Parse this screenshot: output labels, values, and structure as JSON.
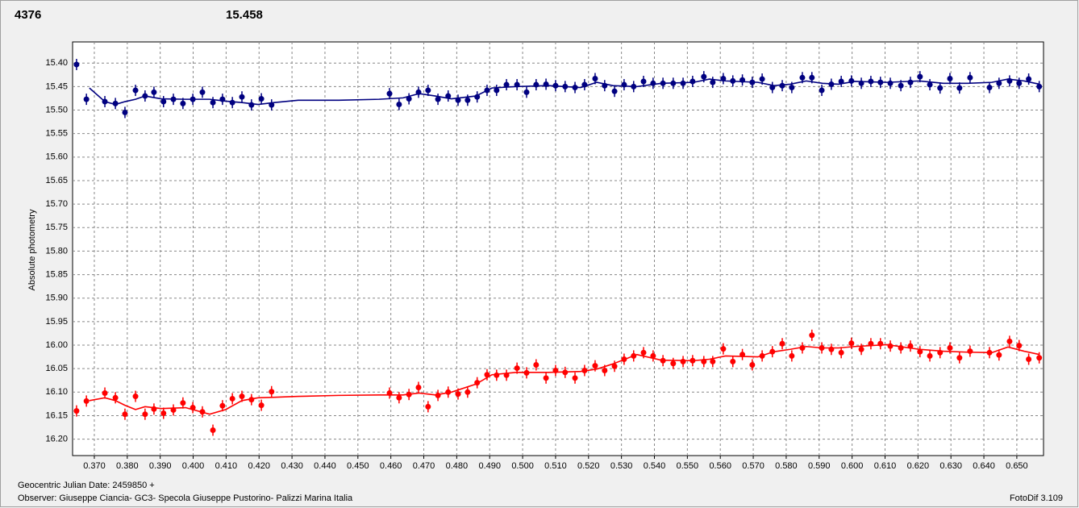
{
  "chart_data": {
    "type": "scatter",
    "annotations": [
      {
        "text": "4376",
        "color": "#ff0000"
      },
      {
        "text": "15.458",
        "color": "#000080"
      }
    ],
    "y_label": "Absolute photometry",
    "x_label": "Geocentric Julian Date: 2459850 +",
    "observer": "Observer: Giuseppe Ciancia- GC3- Specola Giuseppe Pustorino- Palizzi Marina Italia",
    "footer": "FotoDif 3.109",
    "grid": true,
    "xlim": [
      0.3634,
      0.6581
    ],
    "ylim": [
      16.235,
      15.355
    ],
    "xticks": [
      {
        "value": 0.37,
        "label": "0.370"
      },
      {
        "value": 0.38,
        "label": "0.380"
      },
      {
        "value": 0.39,
        "label": "0.390"
      },
      {
        "value": 0.4,
        "label": "0.400"
      },
      {
        "value": 0.41,
        "label": "0.410"
      },
      {
        "value": 0.42,
        "label": "0.420"
      },
      {
        "value": 0.43,
        "label": "0.430"
      },
      {
        "value": 0.44,
        "label": "0.440"
      },
      {
        "value": 0.45,
        "label": "0.450"
      },
      {
        "value": 0.46,
        "label": "0.460"
      },
      {
        "value": 0.47,
        "label": "0.470"
      },
      {
        "value": 0.48,
        "label": "0.480"
      },
      {
        "value": 0.49,
        "label": "0.490"
      },
      {
        "value": 0.5,
        "label": "0.500"
      },
      {
        "value": 0.51,
        "label": "0.510"
      },
      {
        "value": 0.52,
        "label": "0.520"
      },
      {
        "value": 0.53,
        "label": "0.530"
      },
      {
        "value": 0.54,
        "label": "0.540"
      },
      {
        "value": 0.55,
        "label": "0.550"
      },
      {
        "value": 0.56,
        "label": "0.560"
      },
      {
        "value": 0.57,
        "label": "0.570"
      },
      {
        "value": 0.58,
        "label": "0.580"
      },
      {
        "value": 0.59,
        "label": "0.590"
      },
      {
        "value": 0.6,
        "label": "0.600"
      },
      {
        "value": 0.61,
        "label": "0.610"
      },
      {
        "value": 0.62,
        "label": "0.620"
      },
      {
        "value": 0.63,
        "label": "0.630"
      },
      {
        "value": 0.64,
        "label": "0.640"
      },
      {
        "value": 0.65,
        "label": "0.650"
      }
    ],
    "yticks": [
      {
        "value": 15.4,
        "label": "15.40"
      },
      {
        "value": 15.45,
        "label": "15.45"
      },
      {
        "value": 15.5,
        "label": "15.50"
      },
      {
        "value": 15.55,
        "label": "15.55"
      },
      {
        "value": 15.6,
        "label": "15.60"
      },
      {
        "value": 15.65,
        "label": "15.65"
      },
      {
        "value": 15.7,
        "label": "15.70"
      },
      {
        "value": 15.75,
        "label": "15.75"
      },
      {
        "value": 15.8,
        "label": "15.80"
      },
      {
        "value": 15.85,
        "label": "15.85"
      },
      {
        "value": 15.9,
        "label": "15.90"
      },
      {
        "value": 15.95,
        "label": "15.95"
      },
      {
        "value": 16.0,
        "label": "16.00"
      },
      {
        "value": 16.05,
        "label": "16.05"
      },
      {
        "value": 16.1,
        "label": "16.10"
      },
      {
        "value": 16.15,
        "label": "16.15"
      },
      {
        "value": 16.2,
        "label": "16.20"
      }
    ],
    "x": [
      0.3646,
      0.3676,
      0.3732,
      0.3764,
      0.3793,
      0.3825,
      0.3854,
      0.3881,
      0.391,
      0.394,
      0.3969,
      0.3999,
      0.4028,
      0.406,
      0.4089,
      0.4119,
      0.4148,
      0.4177,
      0.4207,
      0.4238,
      0.4596,
      0.4625,
      0.4655,
      0.4684,
      0.4713,
      0.4743,
      0.4774,
      0.4804,
      0.4833,
      0.4862,
      0.4892,
      0.4921,
      0.4951,
      0.4983,
      0.5012,
      0.5041,
      0.5071,
      0.51,
      0.5129,
      0.5159,
      0.5188,
      0.522,
      0.5249,
      0.5279,
      0.5308,
      0.5337,
      0.5367,
      0.5396,
      0.5426,
      0.5457,
      0.5487,
      0.5516,
      0.555,
      0.5577,
      0.5609,
      0.5638,
      0.5667,
      0.5697,
      0.5727,
      0.5758,
      0.5788,
      0.5817,
      0.5849,
      0.5878,
      0.5908,
      0.5937,
      0.5967,
      0.5998,
      0.6028,
      0.6057,
      0.6086,
      0.6116,
      0.6148,
      0.6177,
      0.6206,
      0.6236,
      0.6267,
      0.6297,
      0.6326,
      0.6358,
      0.6417,
      0.6446,
      0.6478,
      0.6507,
      0.6536,
      0.6568
    ],
    "fit_x": [
      0.3685,
      0.3732,
      0.3764,
      0.3793,
      0.3825,
      0.3854,
      0.3903,
      0.3977,
      0.405,
      0.4099,
      0.4148,
      0.4197,
      0.4246,
      0.4319,
      0.4442,
      0.4564,
      0.4637,
      0.4686,
      0.4735,
      0.4784,
      0.4858,
      0.4907,
      0.498,
      0.5078,
      0.5176,
      0.5225,
      0.5274,
      0.5347,
      0.5421,
      0.5519,
      0.5567,
      0.5616,
      0.5714,
      0.5763,
      0.5812,
      0.5861,
      0.591,
      0.5959,
      0.6008,
      0.6106,
      0.6204,
      0.6277,
      0.6351,
      0.6424,
      0.6473,
      0.6522,
      0.6569
    ],
    "series": [
      {
        "color": "#000080",
        "error": 0.012,
        "values": [
          15.403,
          15.477,
          15.482,
          15.486,
          15.505,
          15.458,
          15.47,
          15.462,
          15.482,
          15.477,
          15.486,
          15.477,
          15.462,
          15.484,
          15.477,
          15.484,
          15.472,
          15.489,
          15.476,
          15.489,
          15.465,
          15.488,
          15.476,
          15.462,
          15.458,
          15.477,
          15.47,
          15.479,
          15.479,
          15.472,
          15.458,
          15.458,
          15.446,
          15.446,
          15.462,
          15.446,
          15.445,
          15.448,
          15.45,
          15.452,
          15.446,
          15.433,
          15.448,
          15.46,
          15.446,
          15.45,
          15.439,
          15.443,
          15.443,
          15.443,
          15.443,
          15.439,
          15.429,
          15.441,
          15.433,
          15.438,
          15.436,
          15.441,
          15.434,
          15.452,
          15.448,
          15.452,
          15.431,
          15.431,
          15.458,
          15.445,
          15.439,
          15.438,
          15.443,
          15.439,
          15.441,
          15.443,
          15.448,
          15.441,
          15.429,
          15.446,
          15.453,
          15.433,
          15.453,
          15.431,
          15.452,
          15.443,
          15.438,
          15.443,
          15.434,
          15.45
        ],
        "fit": [
          15.453,
          15.482,
          15.488,
          15.482,
          15.477,
          15.47,
          15.476,
          15.477,
          15.477,
          15.481,
          15.484,
          15.488,
          15.484,
          15.479,
          15.479,
          15.477,
          15.474,
          15.465,
          15.47,
          15.476,
          15.47,
          15.453,
          15.45,
          15.448,
          15.452,
          15.441,
          15.448,
          15.45,
          15.443,
          15.441,
          15.434,
          15.438,
          15.441,
          15.448,
          15.445,
          15.438,
          15.443,
          15.445,
          15.439,
          15.441,
          15.438,
          15.443,
          15.443,
          15.441,
          15.434,
          15.438,
          15.445
        ]
      },
      {
        "color": "#ff0000",
        "error": 0.012,
        "values": [
          16.14,
          16.119,
          16.102,
          16.112,
          16.147,
          16.109,
          16.147,
          16.136,
          16.145,
          16.138,
          16.123,
          16.133,
          16.142,
          16.181,
          16.129,
          16.114,
          16.109,
          16.116,
          16.128,
          16.099,
          16.102,
          16.112,
          16.105,
          16.09,
          16.131,
          16.107,
          16.1,
          16.104,
          16.1,
          16.08,
          16.063,
          16.064,
          16.064,
          16.049,
          16.059,
          16.042,
          16.07,
          16.054,
          16.058,
          16.07,
          16.054,
          16.044,
          16.054,
          16.045,
          16.03,
          16.023,
          16.016,
          16.023,
          16.033,
          16.039,
          16.035,
          16.033,
          16.035,
          16.035,
          16.008,
          16.035,
          16.02,
          16.042,
          16.023,
          16.014,
          15.997,
          16.023,
          16.006,
          15.979,
          16.006,
          16.009,
          16.016,
          15.996,
          16.009,
          15.997,
          15.997,
          16.002,
          16.006,
          16.002,
          16.014,
          16.023,
          16.016,
          16.006,
          16.027,
          16.013,
          16.016,
          16.021,
          15.992,
          16.001,
          16.03,
          16.027
        ],
        "fit": [
          16.118,
          16.112,
          16.118,
          16.128,
          16.137,
          16.131,
          16.135,
          16.133,
          16.147,
          16.137,
          16.118,
          16.112,
          16.111,
          16.109,
          16.107,
          16.106,
          16.106,
          16.102,
          16.106,
          16.1,
          16.083,
          16.063,
          16.058,
          16.058,
          16.056,
          16.051,
          16.04,
          16.02,
          16.032,
          16.033,
          16.03,
          16.023,
          16.025,
          16.014,
          16.009,
          16.003,
          16.006,
          16.006,
          16.003,
          15.999,
          16.009,
          16.013,
          16.015,
          16.016,
          16.004,
          16.013,
          16.02
        ]
      }
    ]
  }
}
